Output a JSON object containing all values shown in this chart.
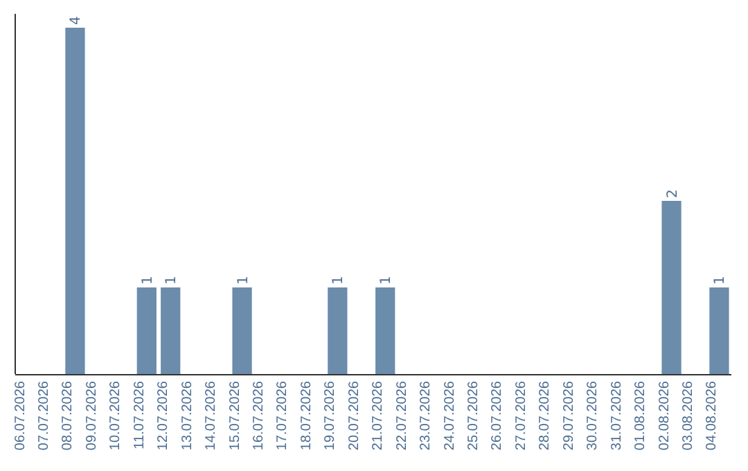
{
  "chart_data": {
    "type": "bar",
    "categories": [
      "06.07.2026",
      "07.07.2026",
      "08.07.2026",
      "09.07.2026",
      "10.07.2026",
      "11.07.2026",
      "12.07.2026",
      "13.07.2026",
      "14.07.2026",
      "15.07.2026",
      "16.07.2026",
      "17.07.2026",
      "18.07.2026",
      "19.07.2026",
      "20.07.2026",
      "21.07.2026",
      "22.07.2026",
      "23.07.2026",
      "24.07.2026",
      "25.07.2026",
      "26.07.2026",
      "27.07.2026",
      "28.07.2026",
      "29.07.2026",
      "30.07.2026",
      "31.07.2026",
      "01.08.2026",
      "02.08.2026",
      "03.08.2026",
      "04.08.2026"
    ],
    "values": [
      0,
      0,
      4,
      0,
      0,
      1,
      1,
      0,
      0,
      1,
      0,
      0,
      0,
      1,
      0,
      1,
      0,
      0,
      0,
      0,
      0,
      0,
      0,
      0,
      0,
      0,
      0,
      2,
      0,
      1
    ],
    "color": "#6b8cab",
    "value_labels": [
      null,
      null,
      "4",
      null,
      null,
      "1",
      "1",
      null,
      null,
      "1",
      null,
      null,
      null,
      "1",
      null,
      "1",
      null,
      null,
      null,
      null,
      null,
      null,
      null,
      null,
      null,
      null,
      null,
      "2",
      null,
      "1"
    ],
    "tick_labels": "x"
  }
}
